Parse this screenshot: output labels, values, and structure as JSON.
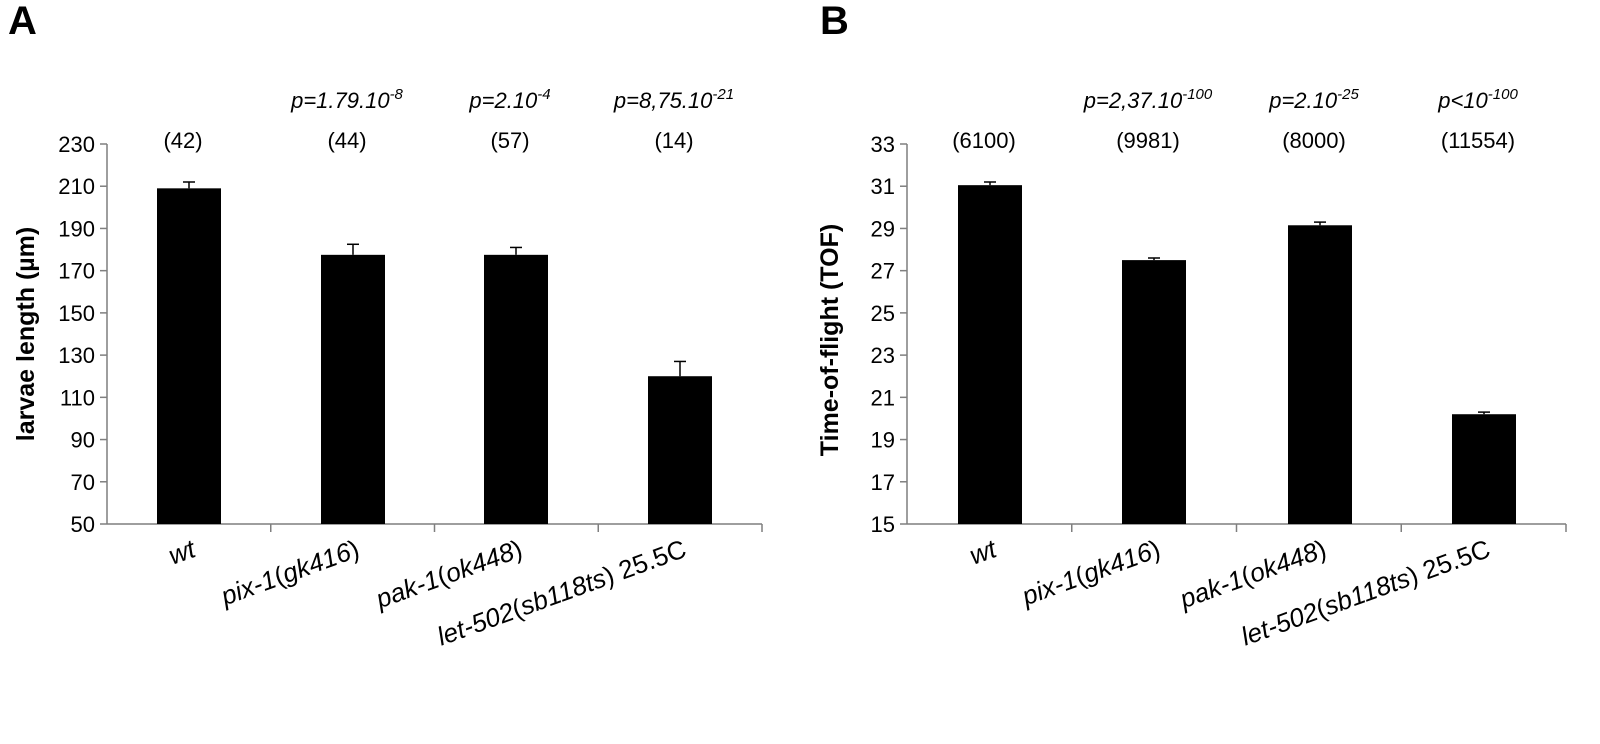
{
  "chart_data": [
    {
      "type": "bar",
      "panel": "A",
      "ylabel": "larvae length (µm)",
      "ylim": [
        50,
        230
      ],
      "yticks": [
        50,
        70,
        90,
        110,
        130,
        150,
        170,
        190,
        210,
        230
      ],
      "categories": [
        {
          "label_parts": [
            {
              "text": "wt",
              "italic": true
            }
          ]
        },
        {
          "label_parts": [
            {
              "text": "pix-1",
              "italic": true
            },
            {
              "text": "(",
              "italic": false
            },
            {
              "text": "gk416",
              "italic": true
            },
            {
              "text": ")",
              "italic": false
            }
          ]
        },
        {
          "label_parts": [
            {
              "text": "pak-1",
              "italic": true
            },
            {
              "text": "(",
              "italic": false
            },
            {
              "text": "ok448",
              "italic": true
            },
            {
              "text": ")",
              "italic": false
            }
          ]
        },
        {
          "label_parts": [
            {
              "text": "let-502",
              "italic": true
            },
            {
              "text": "(",
              "italic": false
            },
            {
              "text": "sb118ts",
              "italic": true
            },
            {
              "text": ") 25.5C",
              "italic": false
            }
          ]
        }
      ],
      "values": [
        209,
        177.5,
        177.5,
        120
      ],
      "errors": [
        3,
        5,
        3.5,
        7
      ],
      "n_labels": [
        "(42)",
        "(44)",
        "(57)",
        "(14)"
      ],
      "p_labels": [
        null,
        {
          "base": "p=1.79.10",
          "exp": "-8"
        },
        {
          "base": "p=2.10",
          "exp": "-4"
        },
        {
          "base": "p=8,75.10",
          "exp": "-21"
        }
      ]
    },
    {
      "type": "bar",
      "panel": "B",
      "ylabel": "Time-of-flight (TOF)",
      "ylim": [
        15,
        33
      ],
      "yticks": [
        15,
        17,
        19,
        21,
        23,
        25,
        27,
        29,
        31,
        33
      ],
      "categories": [
        {
          "label_parts": [
            {
              "text": "wt",
              "italic": true
            }
          ]
        },
        {
          "label_parts": [
            {
              "text": "pix-1",
              "italic": true
            },
            {
              "text": "(",
              "italic": false
            },
            {
              "text": "gk416",
              "italic": true
            },
            {
              "text": ")",
              "italic": false
            }
          ]
        },
        {
          "label_parts": [
            {
              "text": "pak-1",
              "italic": true
            },
            {
              "text": "(",
              "italic": false
            },
            {
              "text": "ok448",
              "italic": true
            },
            {
              "text": ")",
              "italic": false
            }
          ]
        },
        {
          "label_parts": [
            {
              "text": "let-502",
              "italic": true
            },
            {
              "text": "(",
              "italic": false
            },
            {
              "text": "sb118ts",
              "italic": true
            },
            {
              "text": ") 25.5C",
              "italic": false
            }
          ]
        }
      ],
      "values": [
        31.05,
        27.5,
        29.15,
        20.2
      ],
      "errors": [
        0.15,
        0.1,
        0.15,
        0.1
      ],
      "n_labels": [
        "(6100)",
        "(9981)",
        "(8000)",
        "(11554)"
      ],
      "p_labels": [
        null,
        {
          "base": "p=2,37.10",
          "exp": "-100"
        },
        {
          "base": "p=2.10",
          "exp": "-25"
        },
        {
          "base": "p<10",
          "exp": "-100"
        }
      ]
    }
  ]
}
